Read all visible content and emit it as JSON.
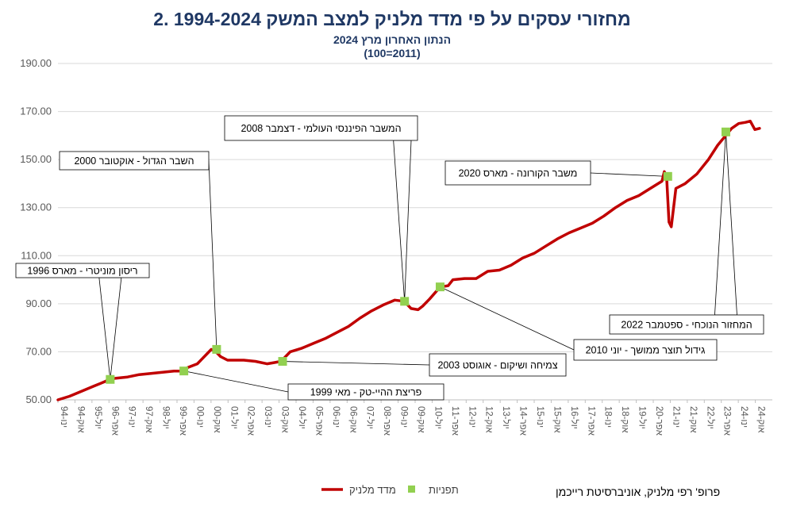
{
  "chart_data": {
    "type": "line",
    "title": "2. מחזורי עסקים על פי מדד מלניק למצב המשק 1994-2024",
    "subtitle1": "הנתון האחרון מרץ 2024",
    "subtitle2": "(100=2011)",
    "ylim": [
      50,
      190
    ],
    "yticks": [
      "50.00",
      "70.00",
      "90.00",
      "110.00",
      "130.00",
      "150.00",
      "170.00",
      "190.00"
    ],
    "xticks": [
      "ינו-94",
      "אוק-94",
      "יול-95",
      "אפר-96",
      "ינו-97",
      "אוק-97",
      "יול-98",
      "אפר-99",
      "ינו-00",
      "אוק-00",
      "יול-01",
      "אפר-02",
      "ינו-03",
      "אוק-03",
      "יול-04",
      "אפר-05",
      "ינו-06",
      "אוק-06",
      "יול-07",
      "אפר-08",
      "ינו-09",
      "אוק-09",
      "יול-10",
      "אפר-11",
      "ינו-12",
      "אוק-12",
      "יול-13",
      "אפר-14",
      "ינו-15",
      "אוק-15",
      "יול-16",
      "אפר-17",
      "ינו-18",
      "אוק-18",
      "יול-19",
      "אפר-20",
      "ינו-21",
      "אוק-21",
      "יול-22",
      "אפר-23",
      "ינו-24",
      "אוק-24"
    ],
    "grid": true,
    "legend_position": "bottom",
    "series": [
      {
        "name": "מדד מלניק",
        "color": "#c00000",
        "x": [
          1994.0,
          1994.5,
          1995.0,
          1995.5,
          1996.0,
          1996.2,
          1996.5,
          1997.0,
          1997.5,
          1998.0,
          1998.5,
          1999.0,
          1999.33,
          1999.6,
          2000.0,
          2000.4,
          2000.6,
          2000.8,
          2001.0,
          2001.3,
          2001.6,
          2002.0,
          2002.5,
          2003.0,
          2003.3,
          2003.6,
          2004.0,
          2004.5,
          2005.0,
          2005.5,
          2006.0,
          2006.5,
          2007.0,
          2007.5,
          2008.0,
          2008.5,
          2008.9,
          2009.2,
          2009.5,
          2009.7,
          2010.0,
          2010.45,
          2010.8,
          2011.0,
          2011.5,
          2012.0,
          2012.5,
          2013.0,
          2013.5,
          2014.0,
          2014.5,
          2015.0,
          2015.5,
          2016.0,
          2016.5,
          2017.0,
          2017.5,
          2018.0,
          2018.5,
          2019.0,
          2019.5,
          2020.0,
          2020.1,
          2020.2,
          2020.3,
          2020.4,
          2020.6,
          2021.0,
          2021.5,
          2022.0,
          2022.4,
          2022.7,
          2023.0,
          2023.3,
          2023.6,
          2023.8,
          2024.0,
          2024.2
        ],
        "values": [
          50,
          51.5,
          53.5,
          55.5,
          57.5,
          58.5,
          59,
          59.5,
          60.5,
          61,
          61.5,
          62,
          62,
          63.5,
          65,
          69,
          71,
          70,
          68,
          66.5,
          66.5,
          66.5,
          66,
          65,
          65.5,
          66,
          70,
          71.5,
          73.5,
          75.5,
          78,
          80.5,
          84,
          87,
          89.5,
          91.5,
          91,
          88,
          87.5,
          89,
          92,
          97,
          97.5,
          100,
          100.5,
          100.5,
          103.5,
          104,
          106,
          109,
          111,
          114,
          117,
          119.5,
          121.5,
          123.5,
          126.5,
          130,
          133,
          135,
          138,
          141,
          145,
          143,
          124,
          122,
          138,
          140,
          144,
          150,
          156,
          159.5,
          163,
          165,
          165.5,
          166,
          162.5,
          163
        ]
      },
      {
        "name": "תפניות",
        "color": "#92d050",
        "x": [
          1996.25,
          1999.42,
          2000.83,
          2003.67,
          2008.92,
          2010.45,
          2020.25,
          2022.75
        ],
        "values": [
          58.5,
          62,
          71,
          66,
          91,
          97,
          143,
          161.5
        ]
      }
    ],
    "annotations": [
      {
        "text": "ריסון מוניטרי - מארס 1996",
        "x": 1996.25,
        "y": 58.5
      },
      {
        "text": "פריצת ההיי-טק - מאי 1999",
        "x": 1999.42,
        "y": 62
      },
      {
        "text": "השבר הגדול - אוקטובר 2000",
        "x": 2000.83,
        "y": 71
      },
      {
        "text": "צמיחה ושיקום - אוגוסט 2003",
        "x": 2003.67,
        "y": 66
      },
      {
        "text": "המשבר הפיננסי העולמי - דצמבר 2008",
        "x": 2008.92,
        "y": 91
      },
      {
        "text": "גידול תוצר ממושך - יוני 2010",
        "x": 2010.45,
        "y": 97
      },
      {
        "text": "משבר הקורונה - מארס 2020",
        "x": 2020.25,
        "y": 143
      },
      {
        "text": "המחזור הנוכחי - ספטמבר 2022",
        "x": 2022.75,
        "y": 161.5
      }
    ]
  },
  "credit": "פרופ' רפי מלניק, אוניברסיטת רייכמן"
}
